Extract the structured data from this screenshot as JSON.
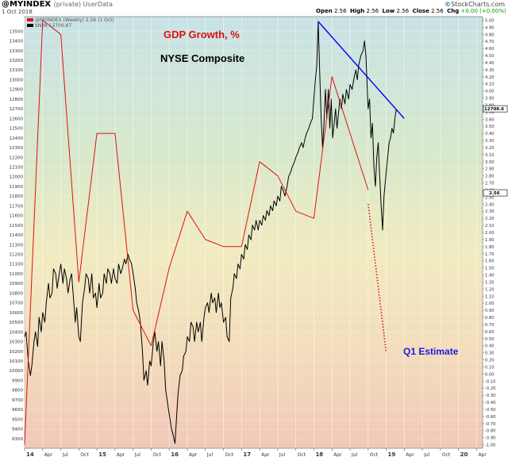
{
  "header": {
    "title": "@MYINDEX",
    "subtitle": "(private)  UserData",
    "date": "1 Oct 2018",
    "open_label": "Open",
    "open": "2.56",
    "high_label": "High",
    "high": "2.56",
    "low_label": "Low",
    "low": "2.56",
    "close_label": "Close",
    "close": "2.56",
    "chg_label": "Chg",
    "chg": "+0.00 (+0.00%)",
    "credit": "StockCharts.com",
    "credit_mark": "©"
  },
  "chart_data": {
    "type": "line",
    "legend": {
      "position": "top-left",
      "entries": [
        "@MYINDEX (Weekly) 2.56 (1 Oct)",
        "$NYA 12700.67"
      ]
    },
    "annotations": {
      "gdp_title": "GDP Growth, %",
      "nyse_title": "NYSE Composite",
      "estimate_label": "Q1 Estimate"
    },
    "x_ticks": [
      "14",
      "Apr",
      "Jul",
      "Oct",
      "15",
      "Apr",
      "Jul",
      "Oct",
      "16",
      "Apr",
      "Jul",
      "Oct",
      "17",
      "Apr",
      "Jul",
      "Oct",
      "18",
      "Apr",
      "Jul",
      "Oct",
      "19",
      "Apr",
      "Jul",
      "Oct",
      "20",
      "Apr"
    ],
    "x_range": [
      2014.0,
      2020.333
    ],
    "left_axis": {
      "ylim": [
        9200,
        13650
      ],
      "ticks": [
        9300,
        9400,
        9500,
        9600,
        9700,
        9800,
        9900,
        10000,
        10100,
        10200,
        10300,
        10400,
        10500,
        10600,
        10700,
        10800,
        10900,
        11000,
        11100,
        11200,
        11300,
        11400,
        11500,
        11600,
        11700,
        11800,
        11900,
        12000,
        12100,
        12200,
        12300,
        12400,
        12500,
        12600,
        12700,
        12800,
        12900,
        13000,
        13100,
        13200,
        13300,
        13400,
        13500
      ]
    },
    "right_axis": {
      "ylim": [
        -1.05,
        5.05
      ],
      "ticks": [
        "5.00",
        "4.90",
        "4.80",
        "4.70",
        "4.60",
        "4.50",
        "4.40",
        "4.30",
        "4.20",
        "4.10",
        "4.00",
        "3.90",
        "3.80",
        "3.70",
        "3.60",
        "3.50",
        "3.40",
        "3.30",
        "3.20",
        "3.10",
        "3.00",
        "2.90",
        "2.80",
        "2.70",
        "2.60",
        "2.50",
        "2.40",
        "2.30",
        "2.20",
        "2.10",
        "2.00",
        "1.90",
        "1.80",
        "1.70",
        "1.60",
        "1.50",
        "1.40",
        "1.30",
        "1.20",
        "1.10",
        "1.00",
        "0.90",
        "0.80",
        "0.70",
        "0.60",
        "0.50",
        "0.40",
        "0.30",
        "0.20",
        "0.10",
        "0.00",
        "-0.10",
        "-0.20",
        "-0.30",
        "-0.40",
        "-0.50",
        "-0.60",
        "-0.70",
        "-0.80",
        "-0.90",
        "-1.00"
      ]
    },
    "last_value_tags": {
      "nya": "12700.6",
      "gdp": "2.56"
    },
    "series": [
      {
        "name": "$NYA",
        "color": "#000000",
        "axis": "left",
        "points": [
          [
            2014.0,
            10350
          ],
          [
            2014.02,
            10400
          ],
          [
            2014.05,
            10100
          ],
          [
            2014.08,
            9950
          ],
          [
            2014.1,
            10050
          ],
          [
            2014.13,
            10300
          ],
          [
            2014.15,
            10400
          ],
          [
            2014.18,
            10250
          ],
          [
            2014.2,
            10550
          ],
          [
            2014.23,
            10400
          ],
          [
            2014.25,
            10600
          ],
          [
            2014.28,
            10500
          ],
          [
            2014.3,
            10700
          ],
          [
            2014.33,
            10900
          ],
          [
            2014.35,
            10750
          ],
          [
            2014.38,
            10800
          ],
          [
            2014.4,
            11050
          ],
          [
            2014.43,
            11000
          ],
          [
            2014.45,
            10850
          ],
          [
            2014.48,
            11000
          ],
          [
            2014.5,
            11100
          ],
          [
            2014.53,
            10900
          ],
          [
            2014.55,
            11050
          ],
          [
            2014.58,
            10950
          ],
          [
            2014.6,
            10800
          ],
          [
            2014.63,
            10950
          ],
          [
            2014.65,
            11000
          ],
          [
            2014.68,
            10700
          ],
          [
            2014.7,
            10500
          ],
          [
            2014.72,
            10650
          ],
          [
            2014.75,
            10350
          ],
          [
            2014.77,
            10300
          ],
          [
            2014.8,
            10700
          ],
          [
            2014.83,
            10850
          ],
          [
            2014.85,
            11000
          ],
          [
            2014.88,
            10950
          ],
          [
            2014.9,
            10800
          ],
          [
            2014.93,
            11000
          ],
          [
            2014.95,
            10750
          ],
          [
            2014.98,
            10800
          ],
          [
            2015.0,
            10650
          ],
          [
            2015.03,
            10900
          ],
          [
            2015.05,
            10750
          ],
          [
            2015.08,
            10800
          ],
          [
            2015.1,
            11000
          ],
          [
            2015.13,
            10900
          ],
          [
            2015.15,
            11050
          ],
          [
            2015.18,
            11000
          ],
          [
            2015.2,
            10900
          ],
          [
            2015.23,
            11050
          ],
          [
            2015.25,
            10950
          ],
          [
            2015.28,
            10900
          ],
          [
            2015.3,
            11100
          ],
          [
            2015.33,
            11000
          ],
          [
            2015.35,
            11050
          ],
          [
            2015.38,
            11150
          ],
          [
            2015.4,
            11100
          ],
          [
            2015.43,
            11200
          ],
          [
            2015.45,
            11150
          ],
          [
            2015.48,
            11100
          ],
          [
            2015.5,
            11000
          ],
          [
            2015.53,
            10850
          ],
          [
            2015.55,
            10700
          ],
          [
            2015.58,
            10600
          ],
          [
            2015.6,
            10500
          ],
          [
            2015.63,
            10200
          ],
          [
            2015.65,
            9900
          ],
          [
            2015.68,
            10000
          ],
          [
            2015.7,
            9850
          ],
          [
            2015.73,
            10100
          ],
          [
            2015.75,
            10050
          ],
          [
            2015.78,
            10300
          ],
          [
            2015.8,
            10400
          ],
          [
            2015.83,
            10200
          ],
          [
            2015.85,
            10300
          ],
          [
            2015.88,
            10050
          ],
          [
            2015.9,
            10300
          ],
          [
            2015.93,
            10100
          ],
          [
            2015.95,
            9800
          ],
          [
            2015.98,
            9650
          ],
          [
            2016.0,
            9550
          ],
          [
            2016.03,
            9400
          ],
          [
            2016.05,
            9350
          ],
          [
            2016.08,
            9250
          ],
          [
            2016.1,
            9500
          ],
          [
            2016.12,
            9750
          ],
          [
            2016.15,
            9950
          ],
          [
            2016.18,
            10000
          ],
          [
            2016.2,
            10150
          ],
          [
            2016.23,
            10200
          ],
          [
            2016.25,
            10350
          ],
          [
            2016.28,
            10300
          ],
          [
            2016.3,
            10500
          ],
          [
            2016.33,
            10450
          ],
          [
            2016.35,
            10300
          ],
          [
            2016.38,
            10500
          ],
          [
            2016.4,
            10400
          ],
          [
            2016.43,
            10500
          ],
          [
            2016.45,
            10300
          ],
          [
            2016.48,
            10550
          ],
          [
            2016.5,
            10650
          ],
          [
            2016.53,
            10700
          ],
          [
            2016.55,
            10600
          ],
          [
            2016.58,
            10800
          ],
          [
            2016.6,
            10700
          ],
          [
            2016.63,
            10750
          ],
          [
            2016.65,
            10600
          ],
          [
            2016.68,
            10800
          ],
          [
            2016.7,
            10650
          ],
          [
            2016.72,
            10700
          ],
          [
            2016.75,
            10500
          ],
          [
            2016.78,
            10550
          ],
          [
            2016.8,
            10350
          ],
          [
            2016.83,
            10300
          ],
          [
            2016.85,
            10750
          ],
          [
            2016.88,
            10850
          ],
          [
            2016.9,
            11000
          ],
          [
            2016.93,
            10950
          ],
          [
            2016.95,
            11100
          ],
          [
            2016.98,
            11050
          ],
          [
            2017.0,
            11200
          ],
          [
            2017.03,
            11150
          ],
          [
            2017.05,
            11300
          ],
          [
            2017.08,
            11250
          ],
          [
            2017.1,
            11400
          ],
          [
            2017.13,
            11350
          ],
          [
            2017.15,
            11500
          ],
          [
            2017.18,
            11450
          ],
          [
            2017.2,
            11550
          ],
          [
            2017.23,
            11450
          ],
          [
            2017.25,
            11550
          ],
          [
            2017.28,
            11500
          ],
          [
            2017.3,
            11600
          ],
          [
            2017.33,
            11550
          ],
          [
            2017.35,
            11650
          ],
          [
            2017.38,
            11600
          ],
          [
            2017.4,
            11700
          ],
          [
            2017.43,
            11650
          ],
          [
            2017.45,
            11750
          ],
          [
            2017.48,
            11700
          ],
          [
            2017.5,
            11800
          ],
          [
            2017.53,
            11750
          ],
          [
            2017.55,
            11900
          ],
          [
            2017.58,
            11850
          ],
          [
            2017.6,
            11800
          ],
          [
            2017.63,
            11900
          ],
          [
            2017.65,
            12000
          ],
          [
            2017.68,
            12050
          ],
          [
            2017.7,
            12100
          ],
          [
            2017.73,
            12150
          ],
          [
            2017.75,
            12200
          ],
          [
            2017.78,
            12250
          ],
          [
            2017.8,
            12300
          ],
          [
            2017.83,
            12350
          ],
          [
            2017.85,
            12300
          ],
          [
            2017.88,
            12400
          ],
          [
            2017.9,
            12450
          ],
          [
            2017.93,
            12500
          ],
          [
            2017.95,
            12550
          ],
          [
            2017.98,
            12600
          ],
          [
            2018.0,
            12800
          ],
          [
            2018.02,
            13000
          ],
          [
            2018.04,
            13150
          ],
          [
            2018.06,
            13600
          ],
          [
            2018.08,
            13100
          ],
          [
            2018.1,
            12600
          ],
          [
            2018.12,
            12300
          ],
          [
            2018.14,
            12550
          ],
          [
            2018.16,
            12900
          ],
          [
            2018.18,
            12600
          ],
          [
            2018.2,
            12900
          ],
          [
            2018.22,
            12500
          ],
          [
            2018.24,
            12800
          ],
          [
            2018.26,
            12400
          ],
          [
            2018.28,
            12550
          ],
          [
            2018.3,
            12700
          ],
          [
            2018.32,
            12500
          ],
          [
            2018.34,
            12650
          ],
          [
            2018.36,
            12800
          ],
          [
            2018.38,
            12700
          ],
          [
            2018.4,
            12850
          ],
          [
            2018.43,
            12750
          ],
          [
            2018.45,
            12900
          ],
          [
            2018.48,
            12800
          ],
          [
            2018.5,
            12950
          ],
          [
            2018.53,
            12900
          ],
          [
            2018.55,
            13000
          ],
          [
            2018.58,
            13100
          ],
          [
            2018.6,
            13000
          ],
          [
            2018.62,
            13150
          ],
          [
            2018.65,
            13250
          ],
          [
            2018.68,
            13300
          ],
          [
            2018.7,
            13400
          ],
          [
            2018.72,
            13250
          ],
          [
            2018.75,
            12700
          ],
          [
            2018.77,
            12800
          ],
          [
            2018.79,
            12400
          ],
          [
            2018.81,
            12550
          ],
          [
            2018.83,
            12100
          ],
          [
            2018.85,
            11900
          ],
          [
            2018.87,
            12200
          ],
          [
            2018.89,
            12350
          ],
          [
            2018.91,
            12000
          ],
          [
            2018.93,
            11700
          ],
          [
            2018.95,
            11450
          ],
          [
            2018.97,
            11800
          ],
          [
            2019.0,
            12050
          ],
          [
            2019.02,
            12200
          ],
          [
            2019.04,
            12350
          ],
          [
            2019.06,
            12400
          ],
          [
            2019.08,
            12500
          ],
          [
            2019.1,
            12450
          ],
          [
            2019.12,
            12600
          ],
          [
            2019.14,
            12700
          ]
        ]
      },
      {
        "name": "@MYINDEX",
        "color": "#e01010",
        "axis": "right",
        "points": [
          [
            2014.0,
            -1.0
          ],
          [
            2014.25,
            5.0
          ],
          [
            2014.5,
            4.8
          ],
          [
            2014.75,
            1.3
          ],
          [
            2015.0,
            3.4
          ],
          [
            2015.25,
            3.4
          ],
          [
            2015.5,
            0.9
          ],
          [
            2015.75,
            0.4
          ],
          [
            2016.0,
            1.5
          ],
          [
            2016.25,
            2.3
          ],
          [
            2016.5,
            1.9
          ],
          [
            2016.75,
            1.8
          ],
          [
            2017.0,
            1.8
          ],
          [
            2017.25,
            3.0
          ],
          [
            2017.5,
            2.8
          ],
          [
            2017.75,
            2.3
          ],
          [
            2018.0,
            2.2
          ],
          [
            2018.25,
            4.2
          ],
          [
            2018.5,
            3.4
          ],
          [
            2018.75,
            2.6
          ]
        ]
      },
      {
        "name": "Q1 Estimate",
        "color": "#e01010",
        "style": "dotted",
        "axis": "right",
        "points": [
          [
            2018.75,
            2.4
          ],
          [
            2019.0,
            0.3
          ]
        ]
      },
      {
        "name": "Trend line",
        "color": "#0000ff",
        "axis": "left",
        "points": [
          [
            2018.06,
            13600
          ],
          [
            2019.25,
            12600
          ]
        ]
      }
    ]
  }
}
